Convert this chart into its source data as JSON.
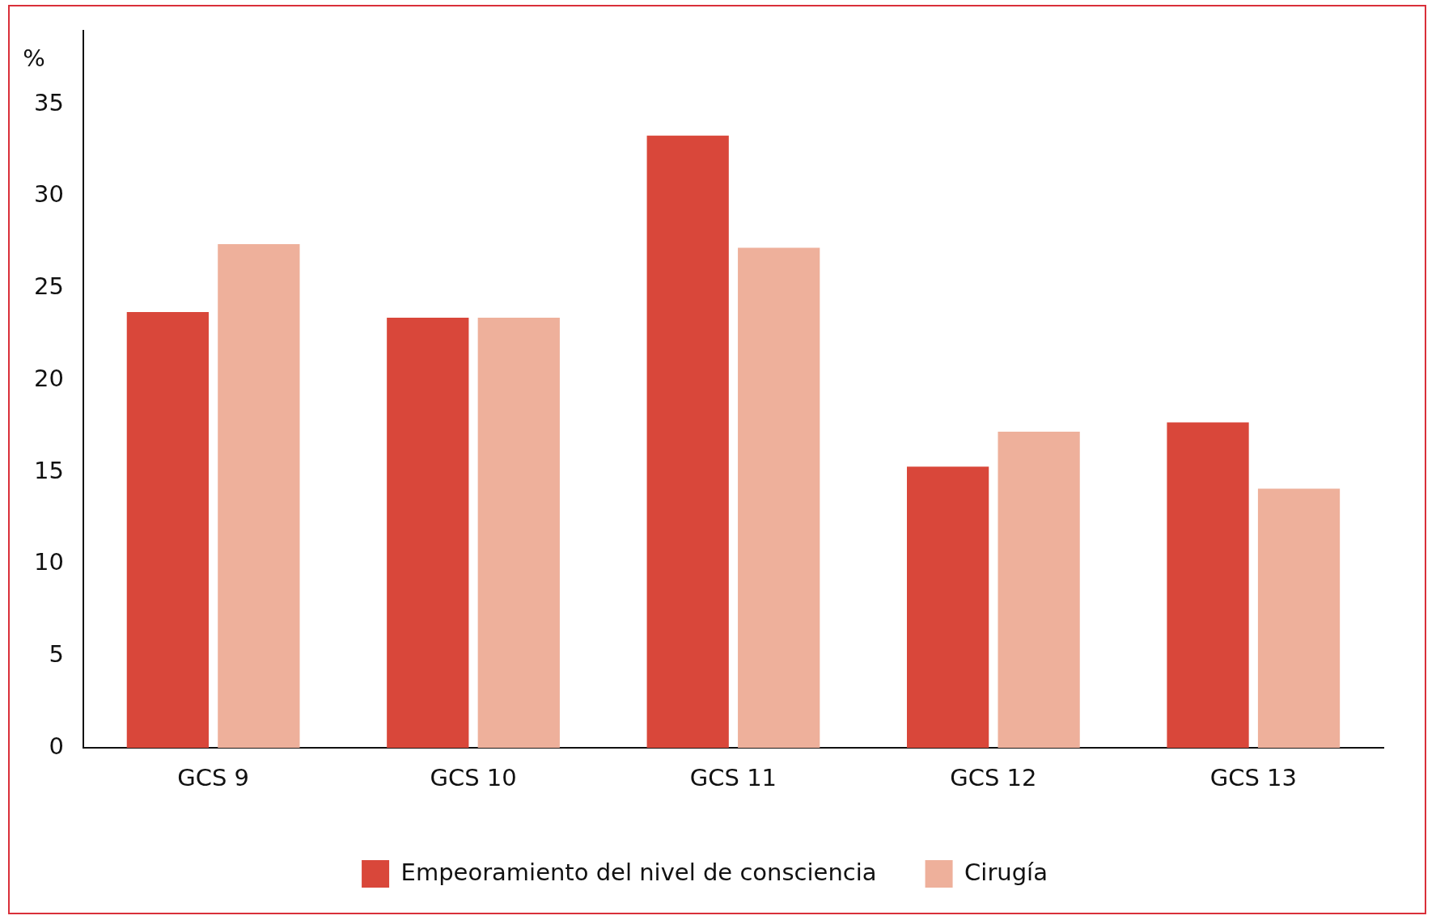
{
  "chart_data": {
    "type": "bar",
    "ylabel": "%",
    "categories": [
      "GCS 9",
      "GCS 10",
      "GCS 11",
      "GCS 12",
      "GCS 13"
    ],
    "series": [
      {
        "name": "Empeoramiento del nivel de consciencia",
        "color": "#d9473a",
        "values": [
          23.7,
          23.4,
          33.3,
          15.3,
          17.7
        ]
      },
      {
        "name": "Cirugía",
        "color": "#eeb09b",
        "values": [
          27.4,
          23.4,
          27.2,
          17.2,
          14.1
        ]
      }
    ],
    "ylim": [
      0,
      39
    ],
    "yticks": [
      0,
      5,
      10,
      15,
      20,
      25,
      30,
      35
    ],
    "grid": false,
    "legend": "bottom"
  }
}
